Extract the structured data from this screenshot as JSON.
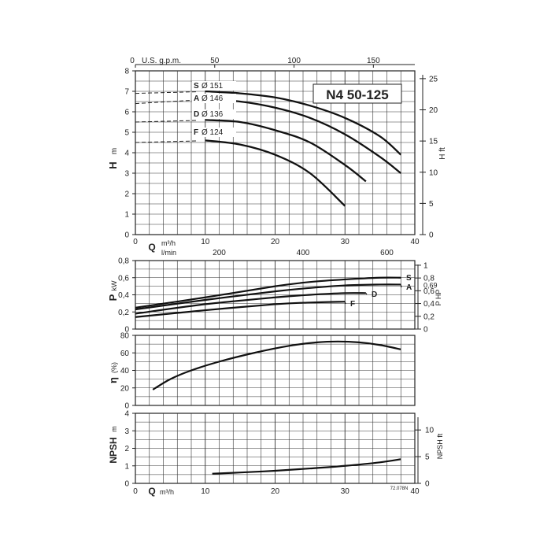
{
  "chart_data": [
    {
      "type": "line",
      "id": "head",
      "title": "N4 50-125",
      "ylabel": "H",
      "yunit": "m",
      "y2label": "H ft",
      "xlabel_top": "U.S. g.p.m.",
      "top_ticks": [
        "0",
        "50",
        "100",
        "150"
      ],
      "xlim": [
        0,
        40
      ],
      "ylim": [
        0,
        8
      ],
      "y_ticks": [
        "0",
        "1",
        "2",
        "3",
        "4",
        "5",
        "6",
        "7",
        "8"
      ],
      "y2_ticks": [
        "0",
        "5",
        "10",
        "15",
        "20",
        "25"
      ],
      "series": [
        {
          "name": "S",
          "diameter": "Ø 151",
          "x": [
            0,
            10,
            15,
            20,
            25,
            30,
            35,
            38
          ],
          "y": [
            6.9,
            7.0,
            6.9,
            6.7,
            6.3,
            5.7,
            4.8,
            3.9
          ]
        },
        {
          "name": "A",
          "diameter": "Ø 146",
          "x": [
            0,
            10,
            15,
            20,
            25,
            30,
            35,
            38
          ],
          "y": [
            6.4,
            6.6,
            6.5,
            6.2,
            5.7,
            4.9,
            3.8,
            3.0
          ]
        },
        {
          "name": "D",
          "diameter": "Ø 136",
          "x": [
            0,
            10,
            15,
            20,
            25,
            30,
            33
          ],
          "y": [
            5.5,
            5.6,
            5.5,
            5.1,
            4.5,
            3.4,
            2.6
          ]
        },
        {
          "name": "F",
          "diameter": "Ø 124",
          "x": [
            0,
            10,
            15,
            20,
            25,
            30
          ],
          "y": [
            4.5,
            4.6,
            4.4,
            3.9,
            3.0,
            1.4
          ]
        }
      ]
    },
    {
      "type": "line",
      "id": "power",
      "xlabel": "Q",
      "xunit_top": "m³/h",
      "xunit_bottom": "l/min",
      "x_ticks": [
        "0",
        "10",
        "20",
        "30",
        "40"
      ],
      "lmin_ticks": [
        "0",
        "200",
        "400",
        "600"
      ],
      "ylabel": "P",
      "yunit": "kW",
      "y2label": "P HP",
      "xlim": [
        0,
        40
      ],
      "ylim": [
        0,
        0.8
      ],
      "y_ticks": [
        "0",
        "0,2",
        "0,4",
        "0,6",
        "0,8"
      ],
      "y2_ticks": [
        "0",
        "0,2",
        "0,4",
        "0,6",
        "0,8",
        "1"
      ],
      "y2_label_69": "0,69",
      "series": [
        {
          "name": "S",
          "x": [
            0,
            10,
            20,
            25,
            30,
            35,
            38
          ],
          "y": [
            0.25,
            0.37,
            0.5,
            0.55,
            0.58,
            0.6,
            0.6
          ]
        },
        {
          "name": "A",
          "x": [
            0,
            10,
            20,
            25,
            30,
            35,
            38
          ],
          "y": [
            0.23,
            0.34,
            0.44,
            0.48,
            0.51,
            0.52,
            0.52
          ]
        },
        {
          "name": "D",
          "x": [
            0,
            10,
            20,
            25,
            30,
            33
          ],
          "y": [
            0.18,
            0.29,
            0.37,
            0.4,
            0.42,
            0.42
          ]
        },
        {
          "name": "F",
          "x": [
            0,
            10,
            20,
            25,
            30
          ],
          "y": [
            0.14,
            0.22,
            0.29,
            0.31,
            0.32
          ]
        }
      ]
    },
    {
      "type": "line",
      "id": "efficiency",
      "ylabel": "η",
      "yunit": "(%)",
      "xlim": [
        0,
        40
      ],
      "ylim": [
        0,
        80
      ],
      "y_ticks": [
        "0",
        "20",
        "40",
        "60",
        "80"
      ],
      "series": [
        {
          "name": "η",
          "x": [
            2.5,
            5,
            8,
            12,
            17,
            22,
            26,
            29,
            32,
            35,
            38
          ],
          "y": [
            18,
            30,
            40,
            50,
            60,
            68,
            72,
            73,
            72,
            69,
            64
          ]
        }
      ]
    },
    {
      "type": "line",
      "id": "npsh",
      "ylabel": "NPSH",
      "yunit": "m",
      "y2label": "NPSH ft",
      "xlabel": "Q",
      "xunit": "m³/h",
      "x_ticks": [
        "0",
        "10",
        "20",
        "30",
        "40"
      ],
      "xlim": [
        0,
        40
      ],
      "ylim": [
        0,
        4
      ],
      "y_ticks": [
        "0",
        "1",
        "2",
        "3",
        "4"
      ],
      "y2_ticks": [
        "0",
        "5",
        "10"
      ],
      "series": [
        {
          "name": "NPSH",
          "x": [
            11,
            15,
            20,
            25,
            30,
            35,
            38
          ],
          "y": [
            0.55,
            0.62,
            0.72,
            0.85,
            1.0,
            1.2,
            1.38
          ]
        }
      ]
    }
  ],
  "drawing_ref": "72.078N"
}
